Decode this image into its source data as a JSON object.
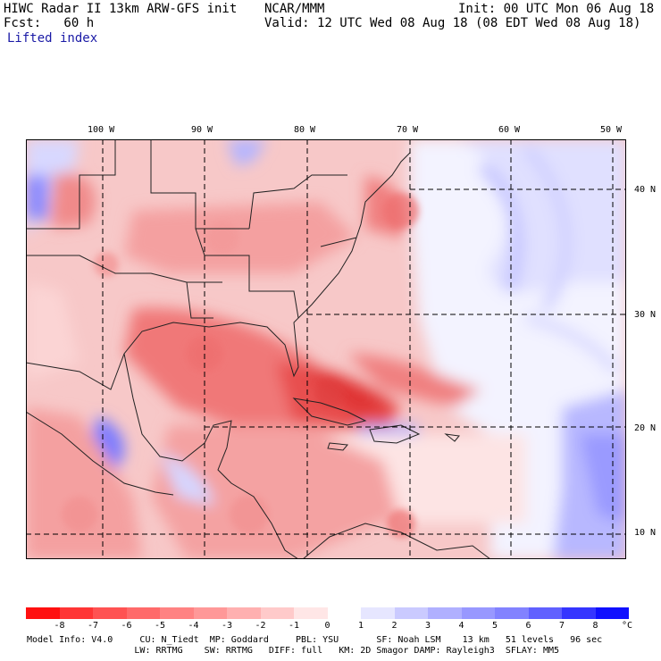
{
  "header": {
    "model": "HIWC Radar II 13km ARW-GFS init",
    "org": "NCAR/MMM",
    "init": "Init: 00 UTC Mon 06 Aug 18",
    "fcst": "Fcst:   60 h",
    "valid": "Valid: 12 UTC Wed 08 Aug 18 (08 EDT Wed 08 Aug 18)",
    "field": "Lifted index"
  },
  "map": {
    "lon_labels": [
      "100 W",
      "90 W",
      "80 W",
      "70 W",
      "60 W",
      "50 W"
    ],
    "lat_labels": [
      "40 N",
      "30 N",
      "20 N",
      "10 N"
    ]
  },
  "colorbar": {
    "ticks": [
      "-8",
      "-7",
      "-6",
      "-5",
      "-4",
      "-3",
      "-2",
      "-1",
      "0",
      "1",
      "2",
      "3",
      "4",
      "5",
      "6",
      "7",
      "8"
    ],
    "unit": "°C",
    "colors": [
      "#ff1010",
      "#ff3535",
      "#ff5252",
      "#ff6a6a",
      "#ff8282",
      "#ff9898",
      "#ffb0b0",
      "#ffcaca",
      "#ffe6e6",
      "#ffffff",
      "#e6e6ff",
      "#cacaff",
      "#b0b0ff",
      "#9898ff",
      "#8282ff",
      "#6060ff",
      "#3535ff",
      "#1010ff"
    ]
  },
  "footer": {
    "line1": "Model Info: V4.0     CU: N_Tiedt  MP: Goddard     PBL: YSU       SF: Noah LSM    13 km   51 levels   96 sec",
    "line2": "                    LW: RRTMG    SW: RRTMG   DIFF: full   KM: 2D Smagor DAMP: Rayleigh3  SFLAY: MM5"
  }
}
